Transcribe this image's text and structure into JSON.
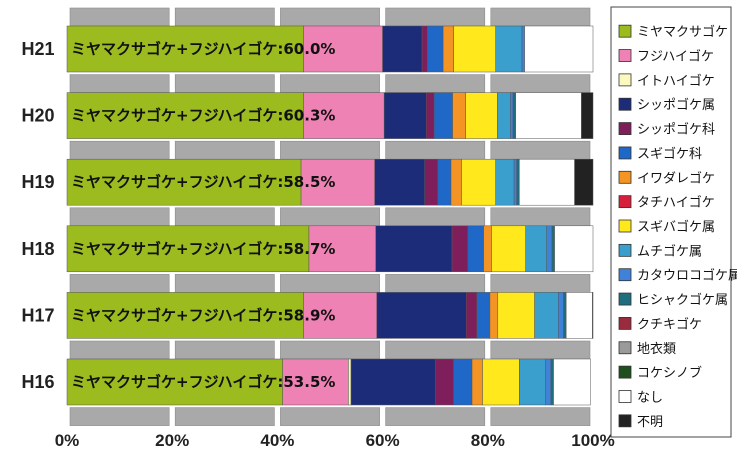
{
  "chart_data": {
    "type": "bar",
    "orientation": "horizontal",
    "stacked": true,
    "title": "",
    "xlabel": "",
    "ylabel": "",
    "xlim": [
      0,
      100
    ],
    "x_ticks": [
      "0%",
      "20%",
      "40%",
      "60%",
      "80%",
      "100%"
    ],
    "categories": [
      "H21",
      "H20",
      "H19",
      "H18",
      "H17",
      "H16"
    ],
    "bar_labels": [
      "ミヤマクサゴケ+フジハイゴケ:60.0%",
      "ミヤマクサゴケ+フジハイゴケ:60.3%",
      "ミヤマクサゴケ+フジハイゴケ:58.5%",
      "ミヤマクサゴケ+フジハイゴケ:58.7%",
      "ミヤマクサゴケ+フジハイゴケ:58.9%",
      "ミヤマクサゴケ+フジハイゴケ:53.5%"
    ],
    "legend_position": "right",
    "grid": false,
    "series": [
      {
        "name": "ミヤマクサゴケ",
        "color": "#9bbb1e",
        "values": [
          45,
          45,
          44.5,
          46,
          45,
          41
        ]
      },
      {
        "name": "フジハイゴケ",
        "color": "#ee82b4",
        "values": [
          15,
          15.3,
          14,
          12.7,
          13.9,
          12.5
        ]
      },
      {
        "name": "イトハイゴケ",
        "color": "#fbf9c0",
        "values": [
          0,
          0,
          0,
          0,
          0,
          0.5
        ]
      },
      {
        "name": "シッポゴケ属",
        "color": "#1c2c78",
        "values": [
          7.5,
          8,
          9.5,
          14.5,
          17,
          16
        ]
      },
      {
        "name": "シッポゴケ科",
        "color": "#7e1f5c",
        "values": [
          1,
          1.5,
          2.5,
          3,
          2,
          3.5
        ]
      },
      {
        "name": "スギゴケ科",
        "color": "#1f68c8",
        "values": [
          3,
          3.5,
          2.5,
          3,
          2.5,
          3.5
        ]
      },
      {
        "name": "イワダレゴケ",
        "color": "#f39424",
        "values": [
          2,
          2.5,
          2,
          1.5,
          1.5,
          2
        ]
      },
      {
        "name": "タチハイゴケ",
        "color": "#d51f3c",
        "values": [
          0,
          0,
          0,
          0,
          0,
          0
        ]
      },
      {
        "name": "スギバゴケ属",
        "color": "#ffe81c",
        "values": [
          8,
          6,
          6.5,
          6.5,
          7,
          7
        ]
      },
      {
        "name": "ムチゴケ属",
        "color": "#3a9fcc",
        "values": [
          5,
          2.5,
          3.5,
          4,
          4.5,
          5
        ]
      },
      {
        "name": "カタウロコゴケ属",
        "color": "#3f82d8",
        "values": [
          0.5,
          0.5,
          0.5,
          1,
          1,
          1
        ]
      },
      {
        "name": "ヒシャクゴケ属",
        "color": "#1e6e7e",
        "values": [
          0,
          0.5,
          0.5,
          0.5,
          0.5,
          0.5
        ]
      },
      {
        "name": "クチキゴケ",
        "color": "#9a2a3e",
        "values": [
          0,
          0,
          0,
          0,
          0,
          0
        ]
      },
      {
        "name": "地衣類",
        "color": "#9a9a9a",
        "values": [
          0,
          0,
          0,
          0,
          0,
          0
        ]
      },
      {
        "name": "コケシノブ",
        "color": "#1f4e1f",
        "values": [
          0,
          0,
          0,
          0,
          0,
          0
        ]
      },
      {
        "name": "なし",
        "color": "#ffffff",
        "values": [
          13,
          12.5,
          10.5,
          7.3,
          5,
          7
        ]
      },
      {
        "name": "不明",
        "color": "#222222",
        "values": [
          0,
          2.2,
          3.5,
          0,
          0.1,
          0
        ]
      }
    ]
  }
}
